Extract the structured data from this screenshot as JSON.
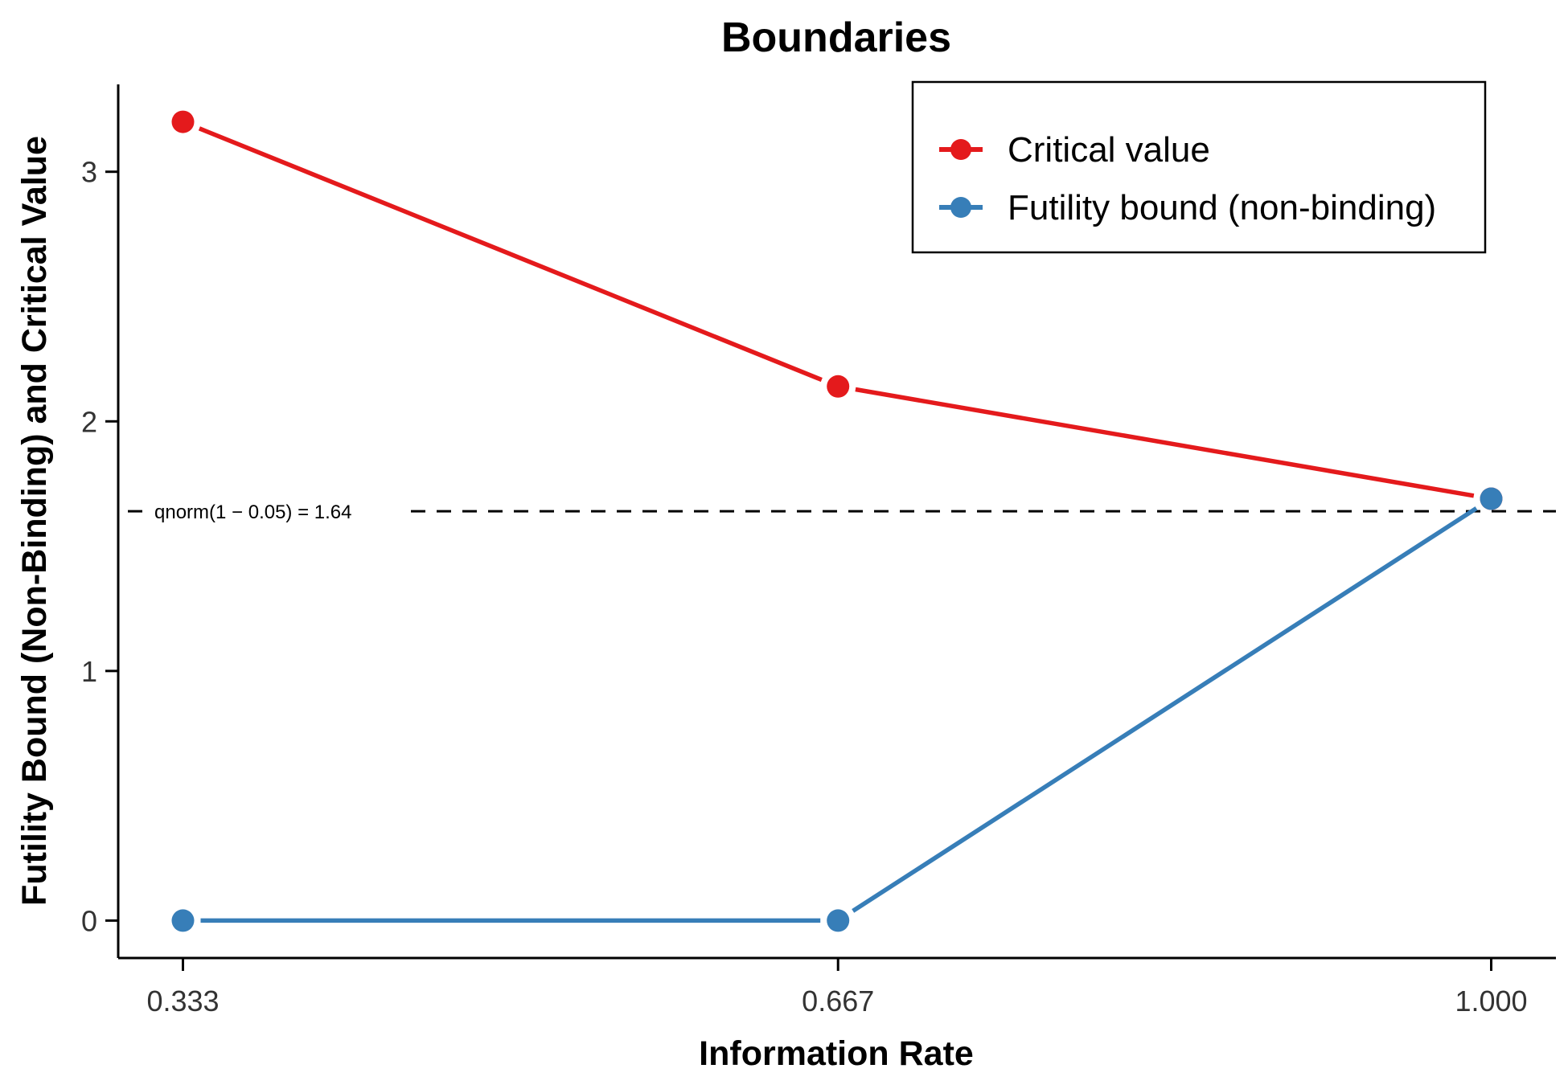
{
  "chart_data": {
    "type": "line",
    "title": "Boundaries",
    "xlabel": "Information Rate",
    "ylabel": "Futility Bound (Non-Binding) and Critical Value",
    "x": [
      0.333,
      0.667,
      1.0
    ],
    "x_tick_labels": [
      "0.333",
      "0.667",
      "1.000"
    ],
    "y_ticks": [
      0,
      1,
      2,
      3
    ],
    "y_tick_labels": [
      "0",
      "1",
      "2",
      "3"
    ],
    "xlim": [
      0.3,
      1.033
    ],
    "ylim": [
      -0.15,
      3.35
    ],
    "grid": false,
    "legend_position": "top-right",
    "series": [
      {
        "name": "Critical value",
        "color": "#e41a1c",
        "values": [
          3.2,
          2.14,
          1.69
        ]
      },
      {
        "name": "Futility bound (non-binding)",
        "color": "#377eb8",
        "values": [
          0,
          0,
          1.69
        ]
      }
    ],
    "reference_line": {
      "value": 1.64,
      "label": "qnorm(1 − 0.05) = 1.64",
      "style": "dashed",
      "color": "#000000"
    }
  }
}
